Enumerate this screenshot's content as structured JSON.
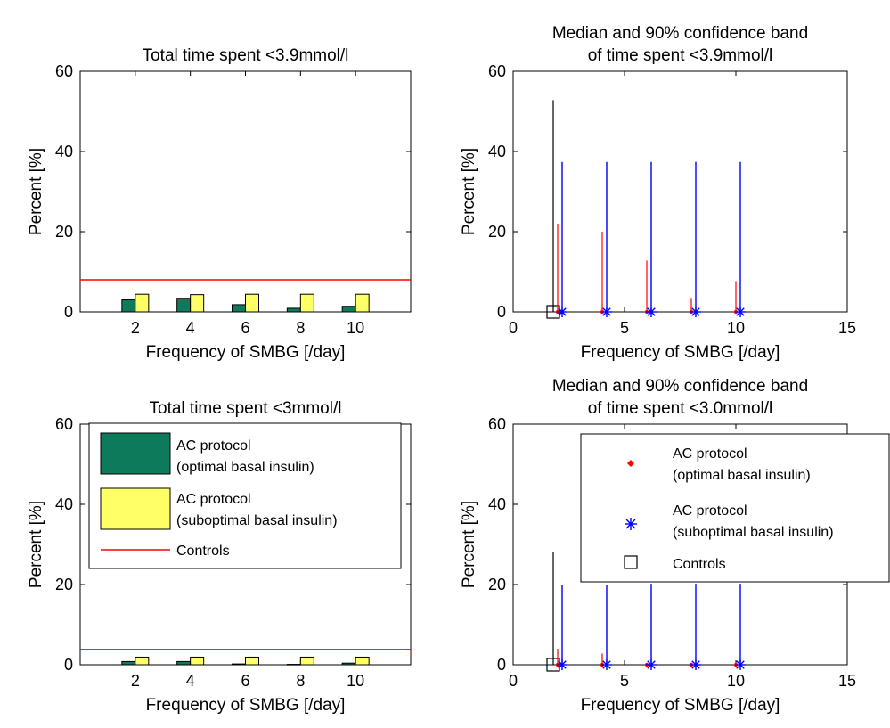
{
  "colors": {
    "optimal": "#0e7a5c",
    "suboptimal": "#ffff66",
    "controls_line": "#ff0000",
    "median_optimal": "#ff0000",
    "median_suboptimal": "#0000ff",
    "controls_marker": "#000000"
  },
  "chart_data": [
    {
      "type": "bar",
      "title": "Total time spent <3.9mmol/l",
      "xlabel": "Frequency of SMBG [/day]",
      "ylabel": "Percent [%]",
      "categories": [
        "2",
        "4",
        "6",
        "8",
        "10"
      ],
      "xlim": [
        0,
        12
      ],
      "ylim": [
        0,
        60
      ],
      "yticks": [
        0,
        20,
        40,
        60
      ],
      "series": [
        {
          "name": "AC protocol (optimal basal insulin)",
          "values": [
            3.0,
            3.4,
            1.8,
            0.9,
            1.4
          ]
        },
        {
          "name": "AC protocol (suboptimal basal insulin)",
          "values": [
            4.4,
            4.3,
            4.4,
            4.4,
            4.4
          ]
        }
      ],
      "controls_level": 8.0
    },
    {
      "type": "scatter",
      "title": [
        "Median and 90% confidence band",
        "of time spent <3.9mmol/l"
      ],
      "xlabel": "Frequency of SMBG [/day]",
      "ylabel": "Percent [%]",
      "xlim": [
        0,
        15
      ],
      "ylim": [
        0,
        60
      ],
      "xticks": [
        0,
        5,
        10,
        15
      ],
      "yticks": [
        0,
        20,
        40,
        60
      ],
      "series": [
        {
          "name": "AC protocol (optimal basal insulin)",
          "x": [
            2,
            4,
            6,
            8,
            10
          ],
          "median": [
            0,
            0,
            0,
            0,
            0
          ],
          "upper": [
            22.0,
            20.0,
            12.8,
            3.5,
            7.7
          ]
        },
        {
          "name": "AC protocol (suboptimal basal insulin)",
          "x": [
            2.2,
            4.2,
            6.2,
            8.2,
            10.2
          ],
          "median": [
            0,
            0,
            0,
            0,
            0
          ],
          "upper": [
            37.4,
            37.4,
            37.4,
            37.4,
            37.4
          ]
        }
      ],
      "controls": {
        "x": 1.8,
        "median": 0,
        "upper": 52.8
      }
    },
    {
      "type": "bar",
      "title": "Total time spent <3mmol/l",
      "xlabel": "Frequency of SMBG [/day]",
      "ylabel": "Percent [%]",
      "categories": [
        "2",
        "4",
        "6",
        "8",
        "10"
      ],
      "xlim": [
        0,
        12
      ],
      "ylim": [
        0,
        60
      ],
      "yticks": [
        0,
        20,
        40,
        60
      ],
      "series": [
        {
          "name": "AC protocol (optimal basal insulin)",
          "values": [
            0.8,
            0.8,
            0.2,
            0.1,
            0.4
          ]
        },
        {
          "name": "AC protocol (suboptimal basal insulin)",
          "values": [
            1.9,
            1.9,
            1.9,
            1.9,
            1.9
          ]
        }
      ],
      "controls_level": 3.8,
      "legend": {
        "position": "top",
        "entries": [
          {
            "lines": [
              "AC protocol",
              "(optimal basal insulin)"
            ]
          },
          {
            "lines": [
              "AC protocol",
              "(suboptimal basal insulin)"
            ]
          },
          {
            "lines": [
              "Controls"
            ]
          }
        ]
      }
    },
    {
      "type": "scatter",
      "title": [
        "Median and 90% confidence band",
        "of time spent <3.0mmol/l"
      ],
      "xlabel": "Frequency of SMBG [/day]",
      "ylabel": "Percent [%]",
      "xlim": [
        0,
        15
      ],
      "ylim": [
        0,
        60
      ],
      "xticks": [
        0,
        5,
        10,
        15
      ],
      "yticks": [
        0,
        20,
        40,
        60
      ],
      "series": [
        {
          "name": "AC protocol (optimal basal insulin)",
          "x": [
            2,
            4,
            6,
            8,
            10
          ],
          "median": [
            0,
            0,
            0,
            0,
            0
          ],
          "upper": [
            4.0,
            2.8,
            0.3,
            0.2,
            0.4
          ]
        },
        {
          "name": "AC protocol (suboptimal basal insulin)",
          "x": [
            2.2,
            4.2,
            6.2,
            8.2,
            10.2
          ],
          "median": [
            0,
            0,
            0,
            0,
            0
          ],
          "upper": [
            20.0,
            20.0,
            20.2,
            20.2,
            20.2
          ]
        }
      ],
      "controls": {
        "x": 1.8,
        "median": 0,
        "upper": 28.0
      },
      "legend": {
        "position": "top-right",
        "entries": [
          {
            "lines": [
              "AC protocol",
              "(optimal basal insulin)"
            ]
          },
          {
            "lines": [
              "AC protocol",
              "(suboptimal basal insulin)"
            ]
          },
          {
            "lines": [
              "Controls"
            ]
          }
        ]
      }
    }
  ]
}
